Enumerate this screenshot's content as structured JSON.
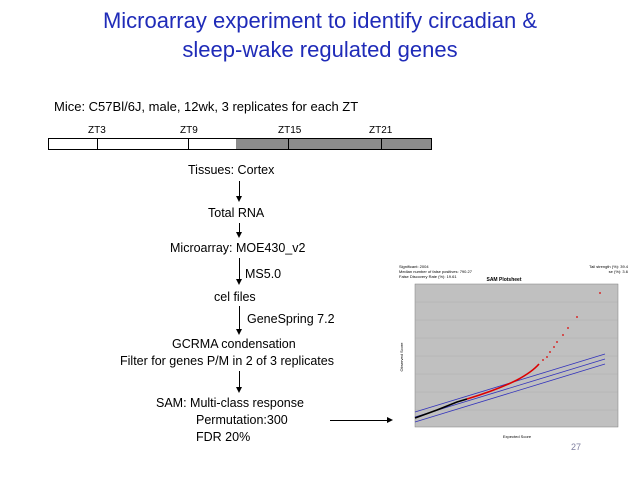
{
  "title": {
    "line1": "Microarray experiment to identify circadian &",
    "line2": "sleep-wake regulated genes"
  },
  "mice": "Mice: C57Bl/6J, male, 12wk, 3 replicates for each ZT",
  "timeline": {
    "labels": [
      "ZT3",
      "ZT9",
      "ZT15",
      "ZT21"
    ],
    "light_color": "#ffffff",
    "dark_color": "#8c8c8c"
  },
  "flow": {
    "tissues": "Tissues: Cortex",
    "total_rna": "Total RNA",
    "microarray": "Microarray: MOE430_v2",
    "ms": "MS5.0",
    "cel": "cel files",
    "genespring": "GeneSpring 7.2",
    "gcrma": "GCRMA condensation",
    "filter": "Filter for genes P/M in 2 of 3 replicates",
    "sam": "SAM: Multi-class response",
    "permutation": "Permutation:300",
    "fdr": "FDR 20%"
  },
  "sam_plot": {
    "header_left": [
      "Significant: 2004",
      "Median number of false positives: 790.27",
      "False Discovery Rate (%): 19.61"
    ],
    "header_center": "SAM Plotsheet",
    "header_right": [
      "Tail strength (%): 39.4",
      "se (%): 3.6"
    ],
    "ylabel": "Observed Score",
    "xlabel": "Expected Score",
    "accent": "#ff0000"
  },
  "slide_number": "27"
}
